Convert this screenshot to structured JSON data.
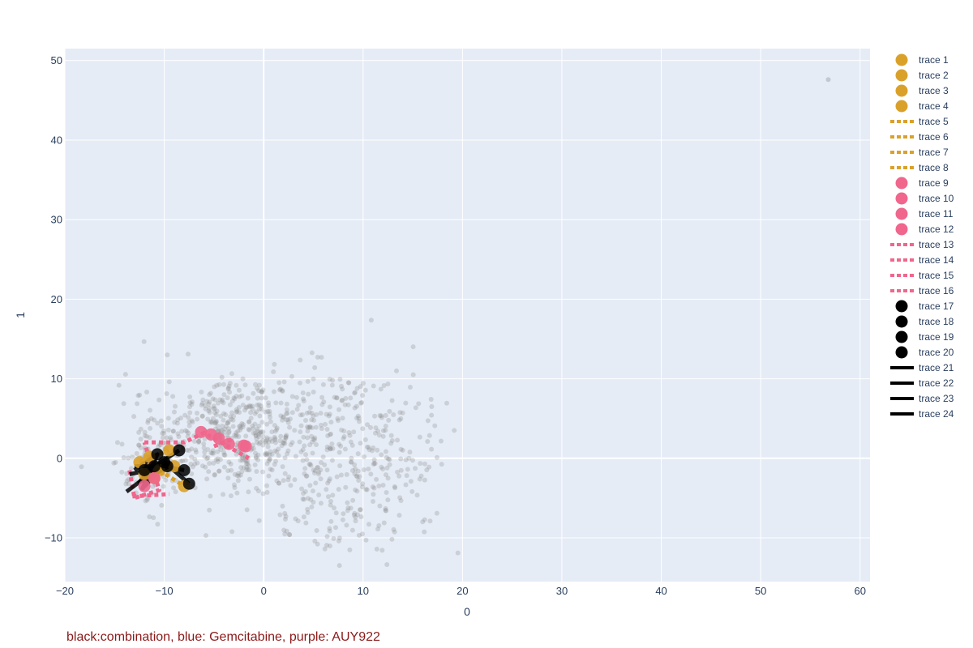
{
  "caption": {
    "text": "black:combination, blue: Gemcitabine, purple: AUY922",
    "color": "#8b1a1a"
  },
  "colors": {
    "plot_bg": "#e5ecf6",
    "grid": "#ffffff",
    "background_points": "#888888",
    "gold": "#daa12a",
    "pink": "#f0668c",
    "black": "#000000"
  },
  "chart_data": {
    "type": "scatter",
    "xlabel": "0",
    "ylabel": "1",
    "xlim": [
      -20,
      61
    ],
    "ylim": [
      -15.5,
      51.5
    ],
    "xticks": [
      -20,
      -10,
      0,
      10,
      20,
      30,
      40,
      50,
      60
    ],
    "yticks": [
      -10,
      0,
      10,
      20,
      30,
      40,
      50
    ],
    "grid": true,
    "legend_placement": "right",
    "background_cloud": {
      "description_points": "dense gray cloud",
      "outlier": [
        56.8,
        47.6
      ],
      "clusters": [
        {
          "cx": -3.5,
          "cy": 3.0,
          "sx": 4.0,
          "sy": 3.3,
          "n": 420
        },
        {
          "cx": 8.0,
          "cy": -2.5,
          "sx": 4.5,
          "sy": 4.5,
          "n": 260
        },
        {
          "cx": 4.0,
          "cy": 6.0,
          "sx": 5.0,
          "sy": 3.0,
          "n": 140
        },
        {
          "cx": -11.0,
          "cy": -1.0,
          "sx": 2.0,
          "sy": 2.8,
          "n": 110
        },
        {
          "cx": 14.0,
          "cy": 4.0,
          "sx": 2.5,
          "sy": 4.0,
          "n": 50
        }
      ]
    },
    "series": [
      {
        "name": "trace 1",
        "kind": "markers",
        "color": "gold",
        "points": [
          [
            -12.5,
            -0.5
          ],
          [
            -11.5,
            0.2
          ]
        ]
      },
      {
        "name": "trace 2",
        "kind": "markers",
        "color": "gold",
        "points": [
          [
            -9.5,
            1.0
          ],
          [
            -10.5,
            -1.5
          ]
        ]
      },
      {
        "name": "trace 3",
        "kind": "markers",
        "color": "gold",
        "points": [
          [
            -8.0,
            -3.5
          ],
          [
            -11.0,
            -2.5
          ]
        ]
      },
      {
        "name": "trace 4",
        "kind": "markers",
        "color": "gold",
        "points": [
          [
            -12.0,
            -2.0
          ],
          [
            -9.0,
            -1.0
          ]
        ]
      },
      {
        "name": "trace 5",
        "kind": "dotted",
        "color": "gold",
        "points": [
          [
            -12.5,
            -0.5
          ],
          [
            -9.5,
            1.0
          ]
        ]
      },
      {
        "name": "trace 6",
        "kind": "dotted",
        "color": "gold",
        "points": [
          [
            -10.5,
            -1.5
          ],
          [
            -8.0,
            -3.5
          ]
        ]
      },
      {
        "name": "trace 7",
        "kind": "dotted",
        "color": "gold",
        "points": [
          [
            -11.0,
            -2.5
          ],
          [
            -9.0,
            -1.0
          ]
        ]
      },
      {
        "name": "trace 8",
        "kind": "dotted",
        "color": "gold",
        "points": [
          [
            -12.0,
            -2.0
          ],
          [
            -11.5,
            0.2
          ]
        ]
      },
      {
        "name": "trace 9",
        "kind": "markers",
        "color": "pink",
        "points": [
          [
            -6.3,
            3.3
          ],
          [
            -5.3,
            3.0
          ]
        ]
      },
      {
        "name": "trace 10",
        "kind": "markers",
        "color": "pink",
        "points": [
          [
            -3.5,
            1.8
          ],
          [
            -2.0,
            1.6
          ]
        ]
      },
      {
        "name": "trace 11",
        "kind": "markers",
        "color": "pink",
        "points": [
          [
            -1.8,
            1.5
          ],
          [
            -12.0,
            -3.5
          ]
        ]
      },
      {
        "name": "trace 12",
        "kind": "markers",
        "color": "pink",
        "points": [
          [
            -11.0,
            -2.5
          ],
          [
            -4.5,
            2.5
          ]
        ]
      },
      {
        "name": "trace 13",
        "kind": "dotted",
        "color": "pink",
        "points": [
          [
            -12.0,
            2.0
          ],
          [
            -8.0,
            2.0
          ],
          [
            -6.0,
            3.2
          ],
          [
            -1.5,
            0.0
          ]
        ]
      },
      {
        "name": "trace 14",
        "kind": "dotted",
        "color": "pink",
        "points": [
          [
            -13.5,
            -1.5
          ],
          [
            -13.0,
            -5.0
          ],
          [
            -10.5,
            -4.0
          ],
          [
            -12.0,
            2.0
          ]
        ]
      },
      {
        "name": "trace 15",
        "kind": "dotted",
        "color": "pink",
        "points": [
          [
            -13.2,
            -4.8
          ],
          [
            -9.5,
            -4.5
          ]
        ]
      },
      {
        "name": "trace 16",
        "kind": "dotted",
        "color": "pink",
        "points": [
          [
            -5.0,
            1.5
          ],
          [
            -3.0,
            2.5
          ]
        ]
      },
      {
        "name": "trace 17",
        "kind": "markers",
        "color": "black",
        "points": [
          [
            -10.7,
            0.5
          ],
          [
            -8.5,
            1.0
          ]
        ]
      },
      {
        "name": "trace 18",
        "kind": "markers",
        "color": "black",
        "points": [
          [
            -8.0,
            -1.5
          ],
          [
            -7.5,
            -3.2
          ]
        ]
      },
      {
        "name": "trace 19",
        "kind": "markers",
        "color": "black",
        "points": [
          [
            -9.7,
            -1.0
          ],
          [
            -12.0,
            -1.5
          ]
        ]
      },
      {
        "name": "trace 20",
        "kind": "markers",
        "color": "black",
        "points": [
          [
            -11.0,
            -1.0
          ],
          [
            -10.0,
            -0.5
          ]
        ]
      },
      {
        "name": "trace 21",
        "kind": "line",
        "color": "black",
        "points": [
          [
            -13.0,
            -1.0
          ],
          [
            -11.0,
            -1.0
          ],
          [
            -8.5,
            1.0
          ]
        ]
      },
      {
        "name": "trace 22",
        "kind": "line",
        "color": "black",
        "points": [
          [
            -13.5,
            -2.0
          ],
          [
            -11.5,
            -1.5
          ],
          [
            -12.5,
            -3.0
          ],
          [
            -9.5,
            -1.0
          ],
          [
            -7.5,
            -3.2
          ]
        ]
      },
      {
        "name": "trace 23",
        "kind": "line",
        "color": "black",
        "points": [
          [
            -13.8,
            -4.2
          ],
          [
            -12.0,
            -2.5
          ],
          [
            -10.0,
            -1.0
          ],
          [
            -8.0,
            -1.5
          ]
        ]
      },
      {
        "name": "trace 24",
        "kind": "line",
        "color": "black",
        "points": [
          [
            -13.0,
            -1.5
          ],
          [
            -10.7,
            0.5
          ],
          [
            -12.2,
            -3.8
          ],
          [
            -9.7,
            -0.5
          ]
        ]
      }
    ]
  }
}
